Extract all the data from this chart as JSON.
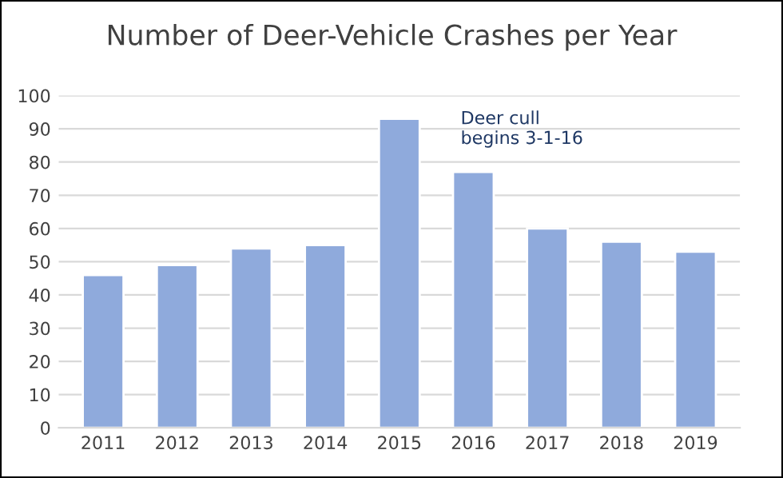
{
  "chart_data": {
    "type": "bar",
    "title": "Number of Deer-Vehicle Crashes per Year",
    "categories": [
      "2011",
      "2012",
      "2013",
      "2014",
      "2015",
      "2016",
      "2017",
      "2018",
      "2019"
    ],
    "values": [
      46,
      49,
      54,
      55,
      93,
      77,
      60,
      56,
      53
    ],
    "color": "#8faadc",
    "ylim": [
      0,
      100
    ],
    "yticks": [
      0,
      10,
      20,
      30,
      40,
      50,
      60,
      70,
      80,
      90,
      100
    ],
    "grid": "y",
    "annotations": [
      "Deer cull\nbegins 3-1-16"
    ]
  }
}
